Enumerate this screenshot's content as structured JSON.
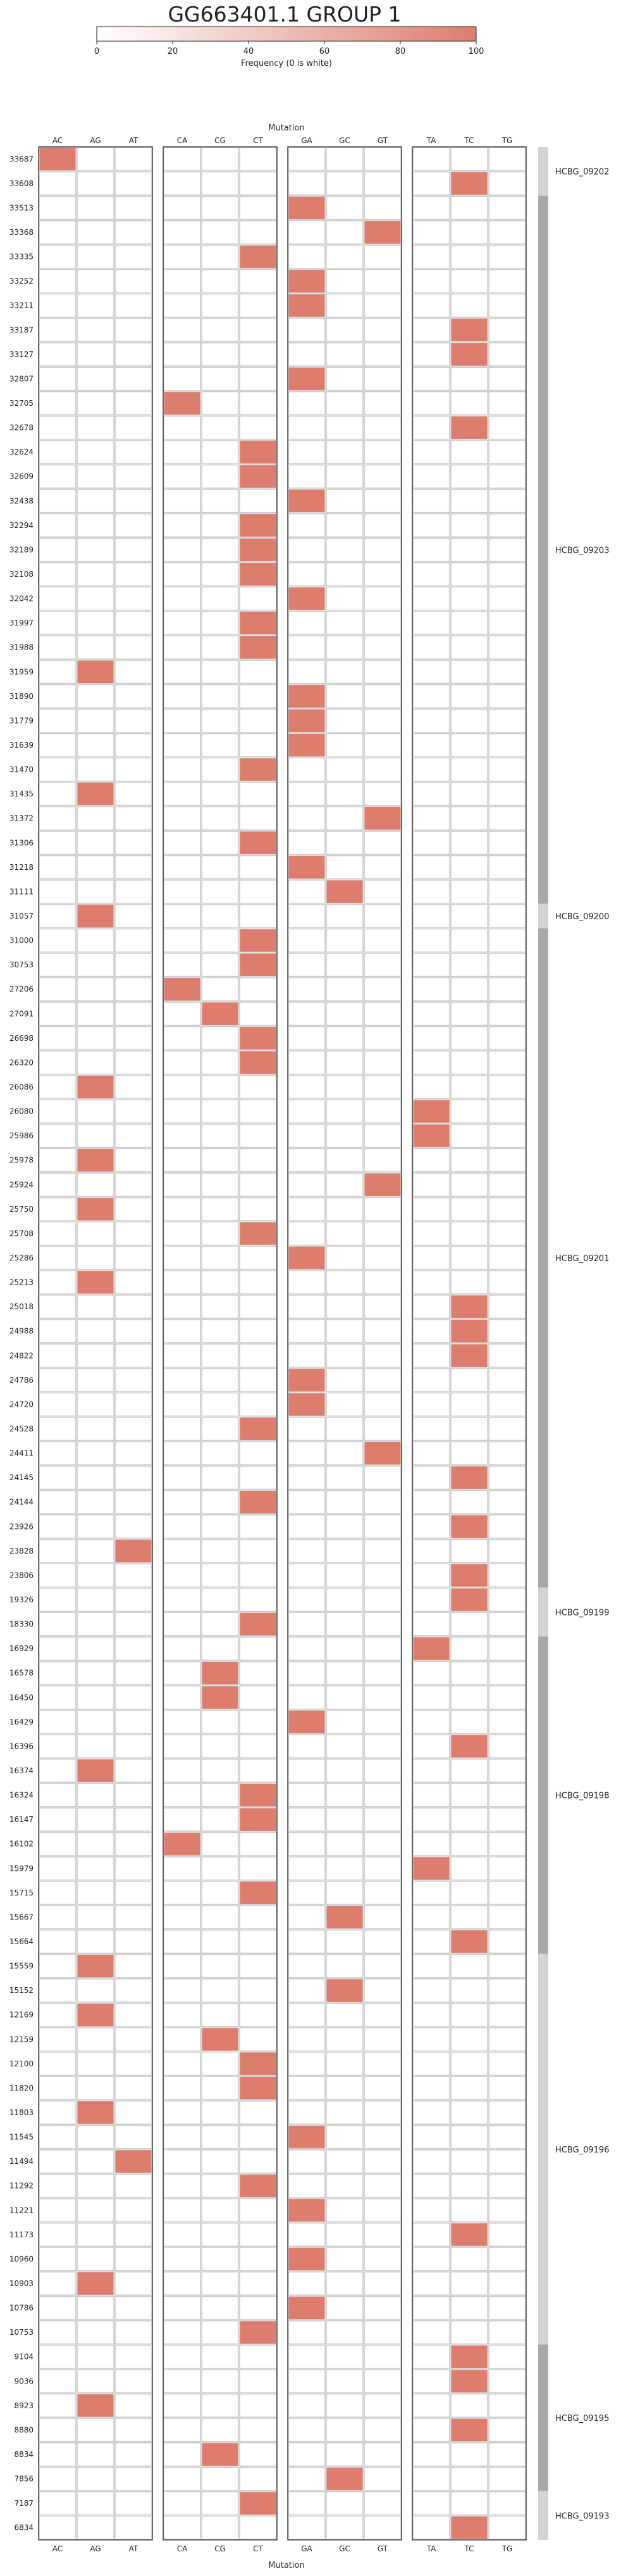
{
  "chart_data": {
    "type": "heatmap",
    "title": "GG663401.1 GROUP 1",
    "colorbar": {
      "label": "Frequency (0 is white)",
      "ticks": [
        "0",
        "20",
        "40",
        "60",
        "80",
        "100"
      ],
      "min": 0,
      "max": 100,
      "color_low": "#ffffff",
      "color_high": "#dc7d6d"
    },
    "xlabel": "Mutation",
    "column_groups": [
      [
        "AC",
        "AG",
        "AT"
      ],
      [
        "CA",
        "CG",
        "CT"
      ],
      [
        "GA",
        "GC",
        "GT"
      ],
      [
        "TA",
        "TC",
        "TG"
      ]
    ],
    "columns": [
      "AC",
      "AG",
      "AT",
      "CA",
      "CG",
      "CT",
      "GA",
      "GC",
      "GT",
      "TA",
      "TC",
      "TG"
    ],
    "rows": [
      "33687",
      "33608",
      "33513",
      "33368",
      "33335",
      "33252",
      "33211",
      "33187",
      "33127",
      "32807",
      "32705",
      "32678",
      "32624",
      "32609",
      "32438",
      "32294",
      "32189",
      "32108",
      "32042",
      "31997",
      "31988",
      "31959",
      "31890",
      "31779",
      "31639",
      "31470",
      "31435",
      "31372",
      "31306",
      "31218",
      "31111",
      "31057",
      "31000",
      "30753",
      "27206",
      "27091",
      "26698",
      "26320",
      "26086",
      "26080",
      "25986",
      "25978",
      "25924",
      "25750",
      "25708",
      "25286",
      "25213",
      "25018",
      "24988",
      "24822",
      "24786",
      "24720",
      "24528",
      "24411",
      "24145",
      "24144",
      "23926",
      "23828",
      "23806",
      "19326",
      "18330",
      "16929",
      "16578",
      "16450",
      "16429",
      "16396",
      "16374",
      "16324",
      "16147",
      "16102",
      "15979",
      "15715",
      "15667",
      "15664",
      "15559",
      "15152",
      "12169",
      "12159",
      "12100",
      "11820",
      "11803",
      "11545",
      "11494",
      "11292",
      "11221",
      "11173",
      "10960",
      "10903",
      "10786",
      "10753",
      "9104",
      "9036",
      "8923",
      "8880",
      "8834",
      "7856",
      "7187",
      "6834"
    ],
    "mutations": [
      "AC",
      "TC",
      "GA",
      "GT",
      "CT",
      "GA",
      "GA",
      "TC",
      "TC",
      "GA",
      "CA",
      "TC",
      "CT",
      "CT",
      "GA",
      "CT",
      "CT",
      "CT",
      "GA",
      "CT",
      "CT",
      "AG",
      "GA",
      "GA",
      "GA",
      "CT",
      "AG",
      "GT",
      "CT",
      "GA",
      "GC",
      "AG",
      "CT",
      "CT",
      "CA",
      "CG",
      "CT",
      "CT",
      "AG",
      "TA",
      "TA",
      "AG",
      "GT",
      "AG",
      "CT",
      "GA",
      "AG",
      "TC",
      "TC",
      "TC",
      "GA",
      "GA",
      "CT",
      "GT",
      "TC",
      "CT",
      "TC",
      "AT",
      "TC",
      "TC",
      "CT",
      "TA",
      "CG",
      "CG",
      "GA",
      "TC",
      "AG",
      "CT",
      "CT",
      "CA",
      "TA",
      "CT",
      "GC",
      "TC",
      "AG",
      "GC",
      "AG",
      "CG",
      "CT",
      "CT",
      "AG",
      "GA",
      "AT",
      "CT",
      "GA",
      "TC",
      "GA",
      "AG",
      "GA",
      "CT",
      "TC",
      "TC",
      "AG",
      "TC",
      "CG",
      "GC",
      "CT",
      "TC"
    ],
    "value": 100,
    "side_groups": [
      {
        "label": "HCBG_09202",
        "first_row": 0,
        "last_row": 1,
        "shade": "#d4d4d4"
      },
      {
        "label": "HCBG_09203",
        "first_row": 2,
        "last_row": 30,
        "shade": "#a8a8a8"
      },
      {
        "label": "HCBG_09200",
        "first_row": 31,
        "last_row": 31,
        "shade": "#d4d4d4"
      },
      {
        "label": "HCBG_09201",
        "first_row": 32,
        "last_row": 58,
        "shade": "#a8a8a8"
      },
      {
        "label": "HCBG_09199",
        "first_row": 59,
        "last_row": 60,
        "shade": "#d4d4d4"
      },
      {
        "label": "HCBG_09198",
        "first_row": 61,
        "last_row": 73,
        "shade": "#a8a8a8"
      },
      {
        "label": "HCBG_09196",
        "first_row": 74,
        "last_row": 89,
        "shade": "#d4d4d4"
      },
      {
        "label": "HCBG_09195",
        "first_row": 90,
        "last_row": 95,
        "shade": "#a8a8a8"
      },
      {
        "label": "HCBG_09193",
        "first_row": 96,
        "last_row": 97,
        "shade": "#d4d4d4"
      }
    ],
    "grid": true
  }
}
